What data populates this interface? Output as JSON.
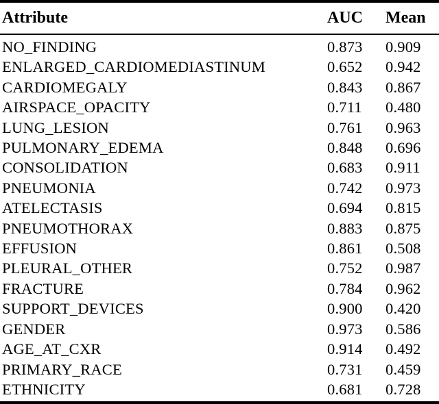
{
  "chart_data": {
    "type": "table",
    "columns": [
      "Attribute",
      "AUC",
      "Mean"
    ],
    "rows": [
      {
        "attribute": "NO_FINDING",
        "auc": "0.873",
        "mean": "0.909"
      },
      {
        "attribute": "ENLARGED_CARDIOMEDIASTINUM",
        "auc": "0.652",
        "mean": "0.942"
      },
      {
        "attribute": "CARDIOMEGALY",
        "auc": "0.843",
        "mean": "0.867"
      },
      {
        "attribute": "AIRSPACE_OPACITY",
        "auc": "0.711",
        "mean": "0.480"
      },
      {
        "attribute": "LUNG_LESION",
        "auc": "0.761",
        "mean": "0.963"
      },
      {
        "attribute": "PULMONARY_EDEMA",
        "auc": "0.848",
        "mean": "0.696"
      },
      {
        "attribute": "CONSOLIDATION",
        "auc": "0.683",
        "mean": "0.911"
      },
      {
        "attribute": "PNEUMONIA",
        "auc": "0.742",
        "mean": "0.973"
      },
      {
        "attribute": "ATELECTASIS",
        "auc": "0.694",
        "mean": "0.815"
      },
      {
        "attribute": "PNEUMOTHORAX",
        "auc": "0.883",
        "mean": "0.875"
      },
      {
        "attribute": "EFFUSION",
        "auc": "0.861",
        "mean": "0.508"
      },
      {
        "attribute": "PLEURAL_OTHER",
        "auc": "0.752",
        "mean": "0.987"
      },
      {
        "attribute": "FRACTURE",
        "auc": "0.784",
        "mean": "0.962"
      },
      {
        "attribute": "SUPPORT_DEVICES",
        "auc": "0.900",
        "mean": "0.420"
      },
      {
        "attribute": "GENDER",
        "auc": "0.973",
        "mean": "0.586"
      },
      {
        "attribute": "AGE_AT_CXR",
        "auc": "0.914",
        "mean": "0.492"
      },
      {
        "attribute": "PRIMARY_RACE",
        "auc": "0.731",
        "mean": "0.459"
      },
      {
        "attribute": "ETHNICITY",
        "auc": "0.681",
        "mean": "0.728"
      }
    ]
  },
  "colors": {
    "text": "#000000",
    "background": "#ffffff",
    "rule": "#000000"
  }
}
